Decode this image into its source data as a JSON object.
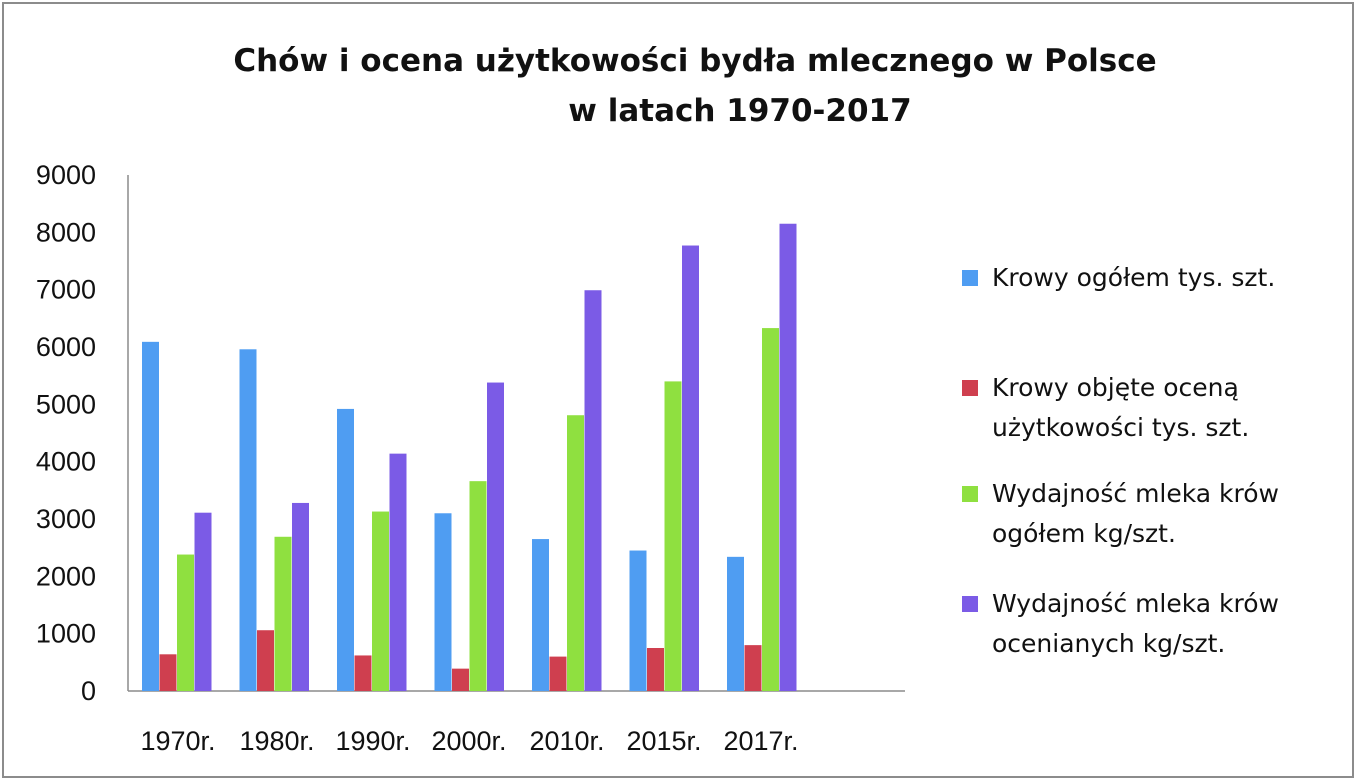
{
  "chart_data": {
    "type": "bar",
    "title_line1": "Chów i ocena użytkowości bydła mlecznego w Polsce",
    "title_line2": "w latach 1970-2017",
    "categories": [
      "1970r.",
      "1980r.",
      "1990r.",
      "2000r.",
      "2010r.",
      "2015r.",
      "2017r."
    ],
    "series": [
      {
        "name": "Krowy ogółem tys. szt.",
        "color": "#4f9df2",
        "values": [
          6090,
          5960,
          4920,
          3100,
          2650,
          2450,
          2340
        ]
      },
      {
        "name": "Krowy objęte oceną użytkowości tys. szt.",
        "color": "#cf3f4f",
        "values": [
          640,
          1060,
          620,
          390,
          600,
          750,
          800
        ]
      },
      {
        "name": "Wydajność mleka krów ogółem kg/szt.",
        "color": "#8fe040",
        "values": [
          2380,
          2690,
          3130,
          3660,
          4810,
          5400,
          6330
        ]
      },
      {
        "name": "Wydajność mleka krów ocenianych kg/szt.",
        "color": "#7b5be6",
        "values": [
          3110,
          3280,
          4140,
          5380,
          6990,
          7770,
          8150
        ]
      }
    ],
    "y_ticks": [
      "0",
      "1000",
      "2000",
      "3000",
      "4000",
      "5000",
      "6000",
      "7000",
      "8000",
      "9000"
    ],
    "ylim": [
      0,
      9000
    ],
    "xlabel": "",
    "ylabel": "",
    "grid": false,
    "legend_position": "right"
  }
}
